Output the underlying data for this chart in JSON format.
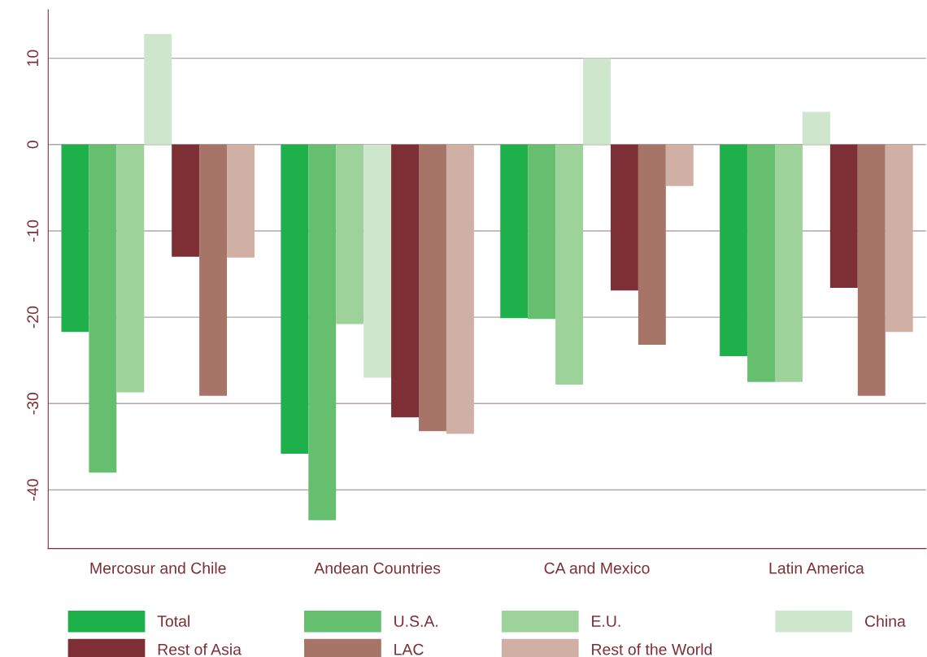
{
  "chart_data": {
    "type": "bar",
    "categories": [
      "Mercosur and Chile",
      "Andean Countries",
      "CA and Mexico",
      "Latin America"
    ],
    "series": [
      {
        "name": "Total",
        "color": "#1db04b",
        "values": [
          -21.7,
          -35.8,
          -20.1,
          -24.5
        ]
      },
      {
        "name": "U.S.A.",
        "color": "#66bf6e",
        "values": [
          -38.0,
          -43.5,
          -20.2,
          -27.5
        ]
      },
      {
        "name": "E.U.",
        "color": "#9dd29b",
        "values": [
          -28.7,
          -20.8,
          -27.8,
          -27.5
        ]
      },
      {
        "name": "China",
        "color": "#cde6cc",
        "values": [
          12.8,
          -27.0,
          10.0,
          3.8
        ]
      },
      {
        "name": "Rest of Asia",
        "color": "#7d2f35",
        "values": [
          -13.0,
          -31.6,
          -16.9,
          -16.6
        ]
      },
      {
        "name": "LAC",
        "color": "#a67568",
        "values": [
          -29.1,
          -33.2,
          -23.2,
          -29.1
        ]
      },
      {
        "name": "Rest of the World",
        "color": "#d0afa5",
        "values": [
          -13.1,
          -33.5,
          -4.8,
          -21.7
        ]
      }
    ],
    "ylim": [
      -46.8,
      15.6
    ],
    "yticks": [
      -40,
      -30,
      -20,
      -10,
      0,
      10
    ],
    "grid": "y",
    "legend": "bottom"
  }
}
